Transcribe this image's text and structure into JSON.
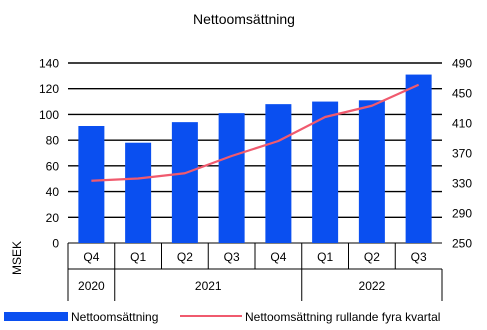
{
  "chart_data": {
    "type": "bar",
    "title": "Nettoomsättning",
    "ylabel": "MSEK",
    "categories": [
      "Q4",
      "Q1",
      "Q2",
      "Q3",
      "Q4",
      "Q1",
      "Q2",
      "Q3"
    ],
    "years": [
      {
        "label": "2020",
        "count": 1
      },
      {
        "label": "2021",
        "count": 4
      },
      {
        "label": "2022",
        "count": 3
      }
    ],
    "y_left": {
      "min": 0,
      "max": 140,
      "ticks": [
        0,
        20,
        40,
        60,
        80,
        100,
        120,
        140
      ]
    },
    "y_right": {
      "min": 250,
      "max": 490,
      "ticks": [
        250,
        290,
        330,
        370,
        410,
        450,
        490
      ]
    },
    "grid": true,
    "legend_position": "bottom",
    "series": [
      {
        "name": "Nettoomsättning",
        "type": "bar",
        "axis": "left",
        "color": "#0a4ff0",
        "values": [
          91,
          78,
          94,
          101,
          108,
          110,
          111,
          131
        ]
      },
      {
        "name": "Nettoomsättning rullande fyra kvartal",
        "type": "line",
        "axis": "right",
        "color": "#f05a6e",
        "values": [
          333,
          336,
          343,
          366,
          386,
          418,
          433,
          461
        ]
      }
    ]
  }
}
